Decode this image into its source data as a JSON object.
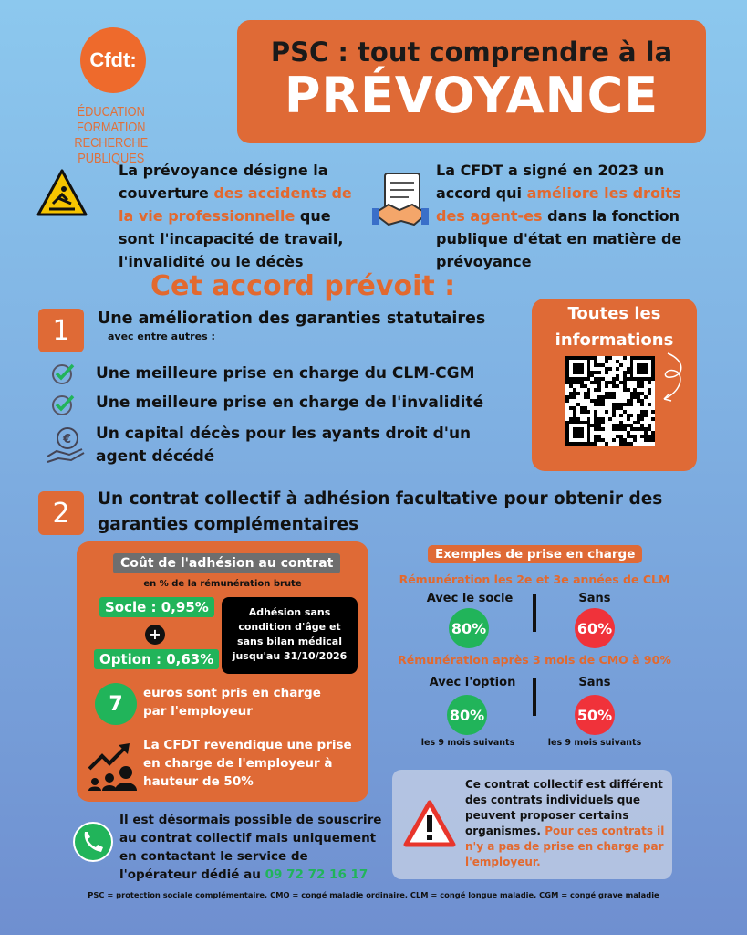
{
  "logo": {
    "brand": "Cfdt:",
    "subtitle_line1": "ÉDUCATION FORMATION",
    "subtitle_line2": "RECHERCHE PUBLIQUES"
  },
  "title": {
    "line1": "PSC : tout comprendre à la",
    "line2": "PRÉVOYANCE"
  },
  "intro_left": {
    "icon": "warning-slip-icon",
    "before": "La prévoyance désigne la couverture ",
    "highlight": "des accidents de la vie professionnelle",
    "after": " que sont l'incapacité de travail, l'invalidité ou le décès"
  },
  "intro_right": {
    "icon": "contract-handshake-icon",
    "before": "La CFDT a signé en 2023 un accord qui ",
    "highlight": "améliore les droits des agent-es",
    "after": " dans la fonction publique d'état en matière de prévoyance"
  },
  "section_title": "Cet accord prévoit :",
  "point1": {
    "number": "1",
    "heading": "Une amélioration des garanties statutaires",
    "subheading": "avec entre autres :",
    "items": [
      {
        "icon": "check-icon",
        "text": "Une meilleure prise en charge du CLM-CGM"
      },
      {
        "icon": "check-icon",
        "text": "Une meilleure prise en charge de l'invalidité"
      },
      {
        "icon": "euro-hand-icon",
        "text": "Un capital décès pour les ayants droit d'un agent décédé"
      }
    ]
  },
  "qr": {
    "label": "Toutes les informations",
    "icon": "qr-code"
  },
  "point2": {
    "number": "2",
    "heading": "Un contrat collectif à adhésion facultative pour obtenir des garanties complémentaires"
  },
  "cost": {
    "title": "Coût de l'adhésion au contrat",
    "subtitle": "en % de la rémunération brute",
    "socle": "Socle : 0,95%",
    "option": "Option : 0,63%",
    "plus": "+",
    "notice": "Adhésion sans condition d'âge et sans bilan médical jusqu'au 31/10/2026",
    "employer_number": "7",
    "employer_text": "euros sont pris en charge par l'employeur",
    "claim": "La CFDT revendique une prise en charge de l'employeur à hauteur de 50%"
  },
  "examples": {
    "title": "Exemples de prise en charge",
    "case1": {
      "title": "Rémunération les 2e et 3e années de CLM",
      "with_label": "Avec le socle",
      "with_value": "80%",
      "without_label": "Sans",
      "without_value": "60%"
    },
    "case2": {
      "title": "Rémunération après 3 mois de CMO à 90%",
      "with_label": "Avec l'option",
      "with_value": "80%",
      "with_note": "les 9 mois suivants",
      "without_label": "Sans",
      "without_value": "50%",
      "without_note": "les 9 mois suivants"
    }
  },
  "phone": {
    "text": "Il est désormais possible de souscrire au contrat collectif mais uniquement en contactant le service de l'opérateur dédié au ",
    "number": "09 72 72 16 17"
  },
  "warning": {
    "text": "Ce contrat collectif est différent des contrats individuels que peuvent proposer certains organismes.",
    "highlight": "Pour ces contrats il n'y a pas de prise en charge par l'employeur."
  },
  "footnote": "PSC = protection sociale complémentaire, CMO = congé maladie ordinaire, CLM = congé longue maladie, CGM = congé grave maladie",
  "colors": {
    "orange": "#df6a36",
    "green": "#21b45a",
    "red": "#f0323a"
  }
}
